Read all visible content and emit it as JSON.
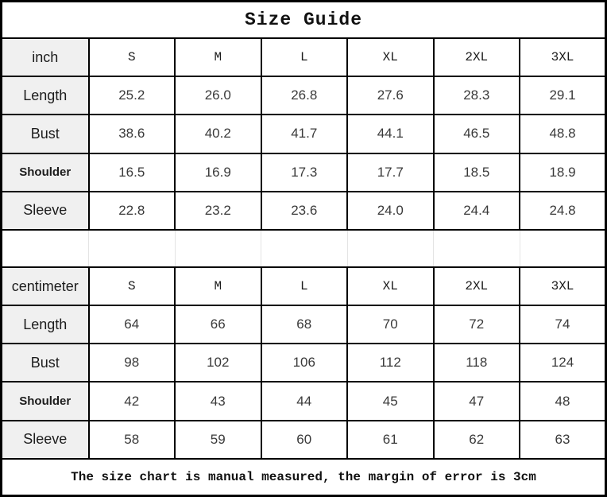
{
  "title": "Size Guide",
  "footer_note": "The size chart is manual measured, the margin of error is 3cm",
  "colors": {
    "border": "#000000",
    "label_column_bg": "#f0f0f0",
    "spacer_divider": "#e4e4e4",
    "text": "#1c1c1c"
  },
  "sizes": [
    "S",
    "M",
    "L",
    "XL",
    "2XL",
    "3XL"
  ],
  "inch_table": {
    "unit_label": "inch",
    "rows": [
      {
        "label": "Length",
        "values": [
          "25.2",
          "26.0",
          "26.8",
          "27.6",
          "28.3",
          "29.1"
        ]
      },
      {
        "label": "Bust",
        "values": [
          "38.6",
          "40.2",
          "41.7",
          "44.1",
          "46.5",
          "48.8"
        ]
      },
      {
        "label": "Shoulder",
        "values": [
          "16.5",
          "16.9",
          "17.3",
          "17.7",
          "18.5",
          "18.9"
        ]
      },
      {
        "label": "Sleeve",
        "values": [
          "22.8",
          "23.2",
          "23.6",
          "24.0",
          "24.4",
          "24.8"
        ]
      }
    ]
  },
  "cm_table": {
    "unit_label": "centimeter",
    "rows": [
      {
        "label": "Length",
        "values": [
          "64",
          "66",
          "68",
          "70",
          "72",
          "74"
        ]
      },
      {
        "label": "Bust",
        "values": [
          "98",
          "102",
          "106",
          "112",
          "118",
          "124"
        ]
      },
      {
        "label": "Shoulder",
        "values": [
          "42",
          "43",
          "44",
          "45",
          "47",
          "48"
        ]
      },
      {
        "label": "Sleeve",
        "values": [
          "58",
          "59",
          "60",
          "61",
          "62",
          "63"
        ]
      }
    ]
  }
}
